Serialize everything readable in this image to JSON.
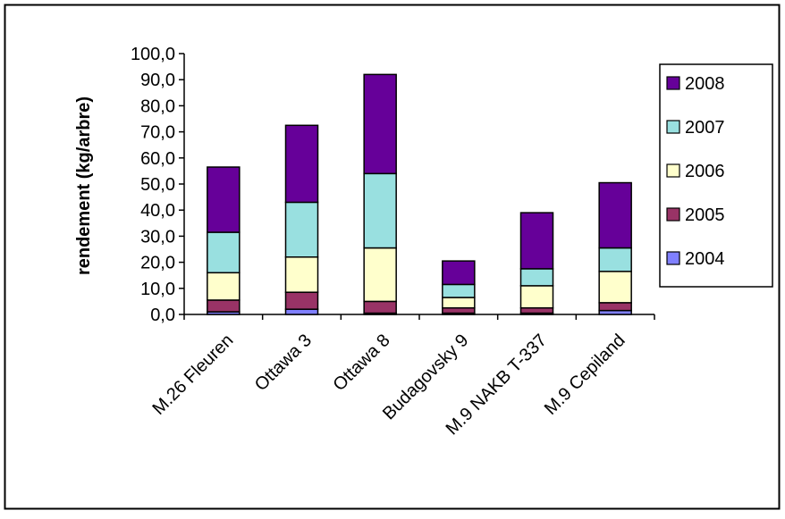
{
  "chart_data": {
    "type": "bar",
    "stacked": true,
    "title": "",
    "xlabel": "",
    "ylabel": "rendement (kg/arbre)",
    "ylim": [
      0,
      100
    ],
    "yticks": [
      "0,0",
      "10,0",
      "20,0",
      "30,0",
      "40,0",
      "50,0",
      "60,0",
      "70,0",
      "80,0",
      "90,0",
      "100,0"
    ],
    "grid": false,
    "legend_position": "right",
    "categories": [
      "M.26 Fleuren",
      "Ottawa 3",
      "Ottawa 8",
      "Budagovsky 9",
      "M.9 NAKB T-337",
      "M.9 Cepiland"
    ],
    "series": [
      {
        "name": "2004",
        "color": "#8080FF",
        "values": [
          1.0,
          2.0,
          0.5,
          0.5,
          0.5,
          1.5
        ]
      },
      {
        "name": "2005",
        "color": "#993366",
        "values": [
          4.5,
          6.5,
          4.5,
          2.0,
          2.0,
          3.0
        ]
      },
      {
        "name": "2006",
        "color": "#FFFFCC",
        "values": [
          10.5,
          13.5,
          20.5,
          4.0,
          8.5,
          12.0
        ]
      },
      {
        "name": "2007",
        "color": "#99E0E0",
        "values": [
          15.5,
          21.0,
          28.5,
          5.0,
          6.5,
          9.0
        ]
      },
      {
        "name": "2008",
        "color": "#660099",
        "values": [
          25.0,
          29.5,
          38.0,
          9.0,
          21.5,
          25.0
        ]
      }
    ],
    "legend_order": [
      "2008",
      "2007",
      "2006",
      "2005",
      "2004"
    ]
  }
}
